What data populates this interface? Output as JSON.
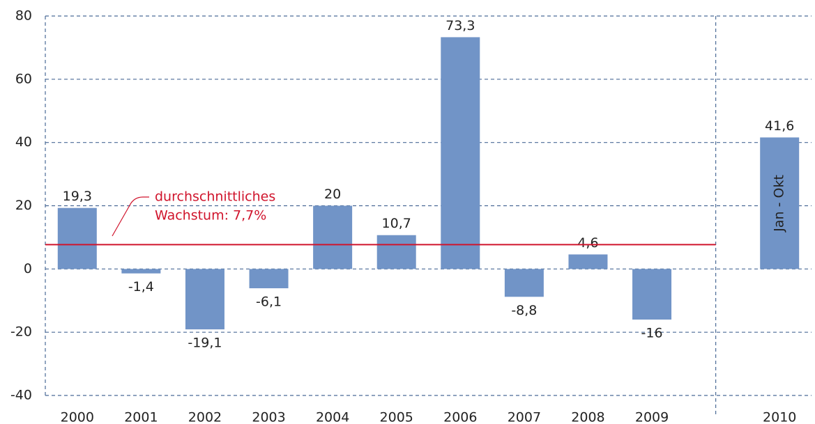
{
  "chart_data": {
    "type": "bar",
    "categories": [
      "2000",
      "2001",
      "2002",
      "2003",
      "2004",
      "2005",
      "2006",
      "2007",
      "2008",
      "2009",
      null,
      "2010"
    ],
    "values": [
      19.3,
      -1.4,
      -19.1,
      -6.1,
      20,
      10.7,
      73.3,
      -8.8,
      4.6,
      -16,
      null,
      41.6
    ],
    "value_labels": [
      "19,3",
      "-1,4",
      "-19,1",
      "-6,1",
      "20",
      "10,7",
      "73,3",
      "-8,8",
      "4,6",
      "-16",
      null,
      "41,6"
    ],
    "bar_annotation": {
      "index": 11,
      "text": "Jan - Okt"
    },
    "color": "#7194c7",
    "ylim": [
      -40,
      80
    ],
    "yticks": [
      -40,
      -20,
      0,
      20,
      40,
      60,
      80
    ],
    "grid": true,
    "average": {
      "value": 7.7,
      "color": "#d0142c",
      "label": [
        "durchschnittliches",
        "Wachstum: 7,7%"
      ]
    }
  }
}
